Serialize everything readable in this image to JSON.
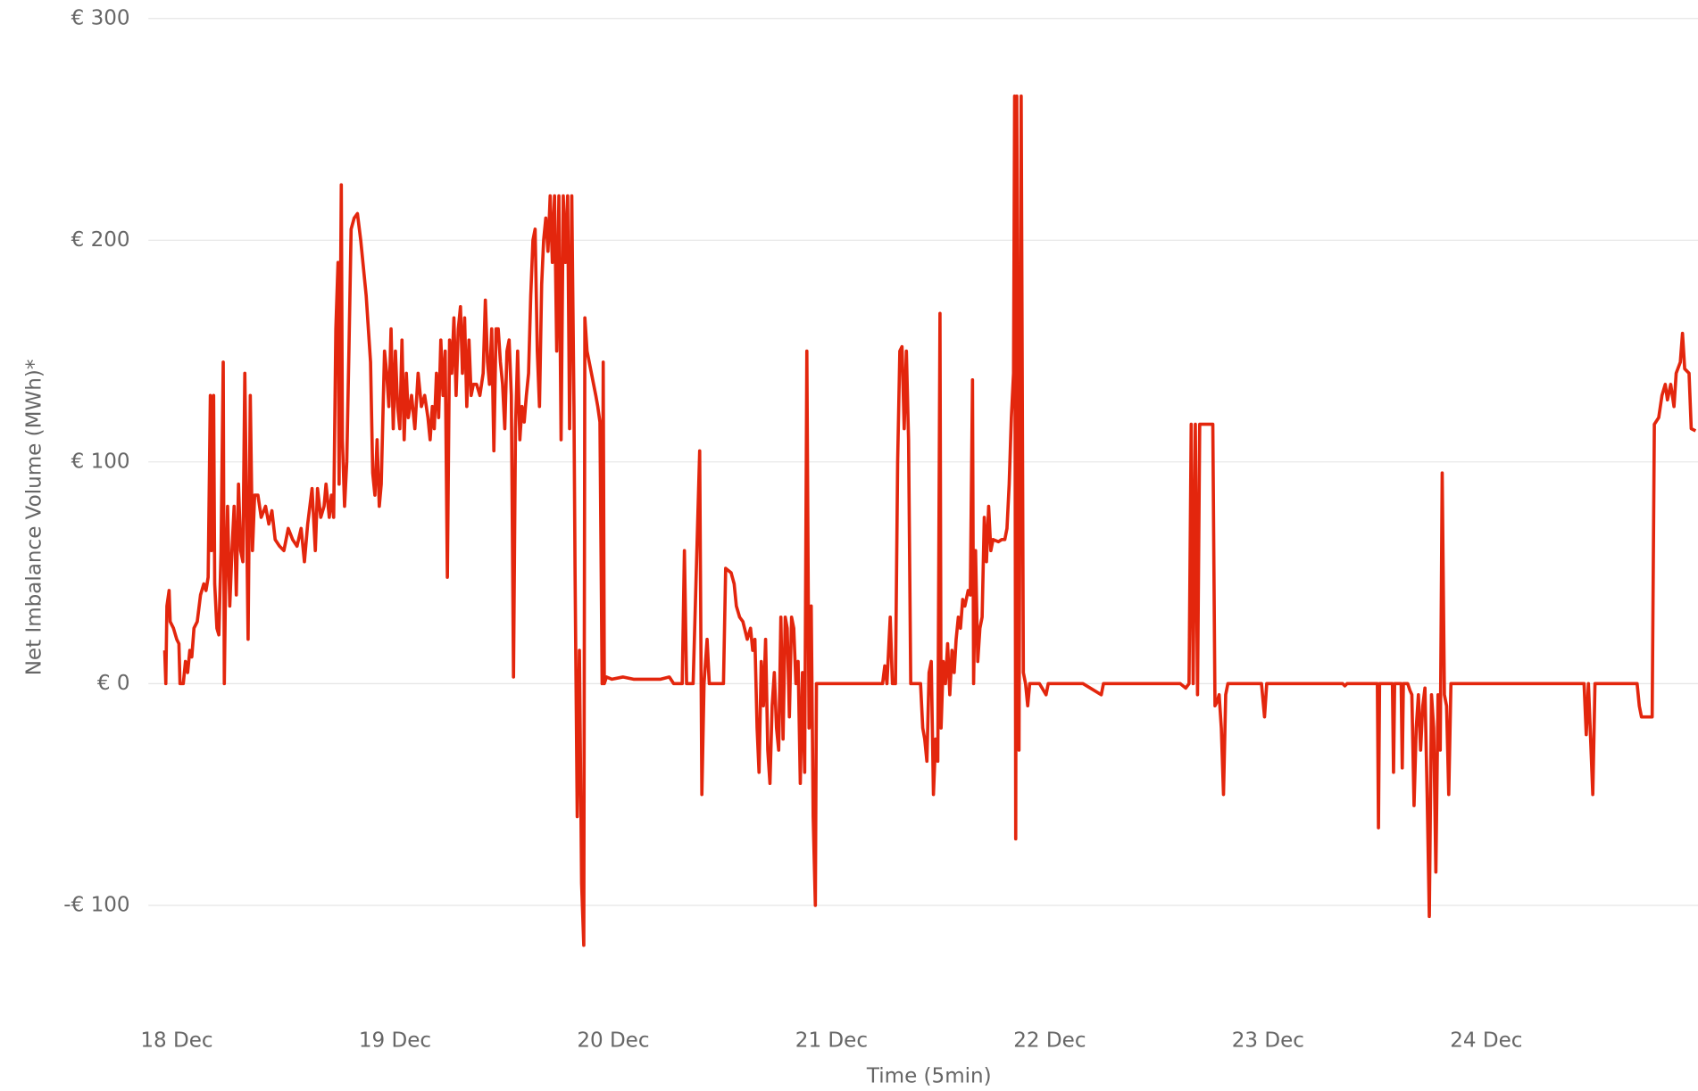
{
  "chart_data": {
    "type": "line",
    "x_label": "Time (5min)",
    "y_label": "Net Imbalance Volume (MWh)*",
    "color": "#e3260d",
    "grid": true,
    "xlim": [
      17.87,
      24.97
    ],
    "ylim": [
      -150,
      300
    ],
    "xticks": [
      {
        "value": 18,
        "label": "18 Dec"
      },
      {
        "value": 19,
        "label": "19 Dec"
      },
      {
        "value": 20,
        "label": "20 Dec"
      },
      {
        "value": 21,
        "label": "21 Dec"
      },
      {
        "value": 22,
        "label": "22 Dec"
      },
      {
        "value": 23,
        "label": "23 Dec"
      },
      {
        "value": 24,
        "label": "24 Dec"
      }
    ],
    "yticks": [
      {
        "value": 300,
        "label": "€ 300"
      },
      {
        "value": 200,
        "label": "€ 200"
      },
      {
        "value": 100,
        "label": "€ 100"
      },
      {
        "value": 0,
        "label": "€ 0"
      },
      {
        "value": -100,
        "label": "-€ 100"
      }
    ],
    "x": [
      17.945,
      17.95,
      17.955,
      17.965,
      17.97,
      17.985,
      18.0,
      18.01,
      18.015,
      18.03,
      18.04,
      18.05,
      18.06,
      18.069,
      18.079,
      18.094,
      18.109,
      18.124,
      18.134,
      18.144,
      18.154,
      18.159,
      18.169,
      18.174,
      18.184,
      18.193,
      18.203,
      18.213,
      18.218,
      18.223,
      18.233,
      18.243,
      18.253,
      18.263,
      18.273,
      18.283,
      18.293,
      18.303,
      18.312,
      18.322,
      18.327,
      18.337,
      18.347,
      18.357,
      18.372,
      18.387,
      18.407,
      18.422,
      18.436,
      18.451,
      18.471,
      18.491,
      18.511,
      18.531,
      18.551,
      18.57,
      18.585,
      18.6,
      18.62,
      18.635,
      18.645,
      18.66,
      18.675,
      18.684,
      18.699,
      18.709,
      18.719,
      18.729,
      18.739,
      18.744,
      18.754,
      18.759,
      18.769,
      18.779,
      18.789,
      18.799,
      18.813,
      18.828,
      18.843,
      18.858,
      18.868,
      18.878,
      18.888,
      18.898,
      18.908,
      18.918,
      18.928,
      18.937,
      18.952,
      18.962,
      18.972,
      18.982,
      18.992,
      19.002,
      19.012,
      19.022,
      19.032,
      19.042,
      19.052,
      19.061,
      19.076,
      19.091,
      19.106,
      19.121,
      19.136,
      19.151,
      19.161,
      19.171,
      19.18,
      19.19,
      19.2,
      19.21,
      19.22,
      19.23,
      19.24,
      19.25,
      19.26,
      19.27,
      19.28,
      19.29,
      19.3,
      19.309,
      19.319,
      19.329,
      19.339,
      19.349,
      19.359,
      19.374,
      19.389,
      19.404,
      19.414,
      19.424,
      19.433,
      19.443,
      19.453,
      19.463,
      19.473,
      19.483,
      19.493,
      19.503,
      19.513,
      19.523,
      19.533,
      19.543,
      19.552,
      19.562,
      19.572,
      19.582,
      19.592,
      19.602,
      19.612,
      19.622,
      19.632,
      19.642,
      19.652,
      19.662,
      19.672,
      19.681,
      19.691,
      19.701,
      19.711,
      19.721,
      19.731,
      19.741,
      19.751,
      19.761,
      19.771,
      19.781,
      19.791,
      19.8,
      19.81,
      19.82,
      19.825,
      19.835,
      19.845,
      19.855,
      19.865,
      19.87,
      19.88,
      19.89,
      19.9,
      19.91,
      19.92,
      19.929,
      19.939,
      19.949,
      19.954,
      19.959,
      19.969,
      19.994,
      20.044,
      20.093,
      20.167,
      20.217,
      20.257,
      20.277,
      20.316,
      20.326,
      20.336,
      20.366,
      20.396,
      20.406,
      20.416,
      20.43,
      20.44,
      20.465,
      20.505,
      20.515,
      20.54,
      20.554,
      20.564,
      20.579,
      20.594,
      20.614,
      20.629,
      20.639,
      20.649,
      20.659,
      20.668,
      20.678,
      20.688,
      20.698,
      20.708,
      20.718,
      20.728,
      20.738,
      20.748,
      20.758,
      20.768,
      20.778,
      20.788,
      20.797,
      20.807,
      20.817,
      20.827,
      20.837,
      20.847,
      20.857,
      20.867,
      20.877,
      20.887,
      20.897,
      20.907,
      20.916,
      20.926,
      20.931,
      21.011,
      21.11,
      21.234,
      21.244,
      21.254,
      21.269,
      21.279,
      21.293,
      21.303,
      21.313,
      21.323,
      21.333,
      21.343,
      21.353,
      21.363,
      21.408,
      21.418,
      21.427,
      21.437,
      21.447,
      21.457,
      21.467,
      21.477,
      21.487,
      21.497,
      21.502,
      21.512,
      21.522,
      21.532,
      21.542,
      21.552,
      21.562,
      21.571,
      21.581,
      21.591,
      21.601,
      21.611,
      21.626,
      21.636,
      21.646,
      21.651,
      21.66,
      21.67,
      21.68,
      21.69,
      21.7,
      21.71,
      21.72,
      21.73,
      21.74,
      21.765,
      21.78,
      21.794,
      21.804,
      21.814,
      21.824,
      21.834,
      21.839,
      21.844,
      21.849,
      21.859,
      21.869,
      21.879,
      21.889,
      21.899,
      21.908,
      21.953,
      21.983,
      21.993,
      22.152,
      22.236,
      22.246,
      22.449,
      22.598,
      22.623,
      22.638,
      22.648,
      22.657,
      22.667,
      22.677,
      22.687,
      22.707,
      22.727,
      22.747,
      22.757,
      22.767,
      22.776,
      22.786,
      22.796,
      22.806,
      22.816,
      22.846,
      22.97,
      22.984,
      22.994,
      23.342,
      23.352,
      23.362,
      23.501,
      23.506,
      23.511,
      23.57,
      23.575,
      23.58,
      23.61,
      23.615,
      23.62,
      23.64,
      23.65,
      23.659,
      23.669,
      23.679,
      23.689,
      23.699,
      23.709,
      23.719,
      23.729,
      23.739,
      23.749,
      23.759,
      23.769,
      23.779,
      23.789,
      23.798,
      23.808,
      23.818,
      23.828,
      23.838,
      24.136,
      24.448,
      24.458,
      24.468,
      24.478,
      24.488,
      24.498,
      24.691,
      24.701,
      24.711,
      24.76,
      24.77,
      24.79,
      24.805,
      24.82,
      24.83,
      24.845,
      24.86,
      24.87,
      24.889,
      24.899,
      24.909,
      24.929,
      24.939,
      24.959
    ],
    "values": [
      15,
      0,
      35,
      42,
      28,
      25,
      20,
      18,
      0,
      0,
      10,
      5,
      15,
      12,
      25,
      28,
      40,
      45,
      42,
      48,
      130,
      60,
      130,
      45,
      25,
      22,
      60,
      145,
      0,
      40,
      80,
      35,
      60,
      80,
      40,
      90,
      60,
      55,
      140,
      60,
      20,
      130,
      60,
      85,
      85,
      75,
      80,
      72,
      78,
      65,
      62,
      60,
      70,
      65,
      62,
      70,
      55,
      72,
      88,
      60,
      88,
      75,
      80,
      90,
      75,
      85,
      75,
      160,
      190,
      90,
      225,
      110,
      80,
      100,
      150,
      205,
      210,
      212,
      200,
      185,
      175,
      160,
      145,
      95,
      85,
      110,
      80,
      90,
      150,
      140,
      125,
      160,
      115,
      150,
      125,
      115,
      155,
      110,
      140,
      120,
      130,
      115,
      140,
      125,
      130,
      120,
      110,
      125,
      115,
      140,
      120,
      155,
      130,
      150,
      48,
      155,
      140,
      165,
      130,
      160,
      170,
      140,
      165,
      125,
      155,
      130,
      135,
      135,
      130,
      140,
      173,
      145,
      135,
      160,
      105,
      160,
      160,
      145,
      135,
      115,
      150,
      155,
      130,
      3,
      115,
      150,
      110,
      125,
      118,
      130,
      140,
      175,
      200,
      205,
      150,
      125,
      180,
      200,
      210,
      195,
      220,
      190,
      220,
      150,
      220,
      110,
      220,
      190,
      220,
      115,
      220,
      125,
      50,
      -60,
      15,
      -90,
      -118,
      165,
      150,
      145,
      140,
      135,
      130,
      125,
      118,
      0,
      145,
      0,
      3,
      2,
      3,
      2,
      2,
      2,
      3,
      0,
      0,
      60,
      0,
      0,
      105,
      -50,
      0,
      20,
      0,
      0,
      0,
      52,
      50,
      45,
      35,
      30,
      28,
      20,
      25,
      15,
      20,
      -20,
      -40,
      10,
      -10,
      20,
      -30,
      -45,
      -10,
      5,
      -20,
      -30,
      30,
      -25,
      30,
      25,
      -15,
      30,
      25,
      0,
      10,
      -45,
      5,
      -40,
      150,
      -20,
      35,
      -60,
      -100,
      0,
      0,
      0,
      0,
      8,
      0,
      30,
      0,
      0,
      100,
      150,
      152,
      115,
      150,
      110,
      0,
      0,
      -20,
      -25,
      -35,
      5,
      10,
      -50,
      -25,
      -35,
      167,
      -20,
      10,
      0,
      18,
      -5,
      15,
      5,
      20,
      30,
      25,
      38,
      35,
      42,
      40,
      137,
      0,
      60,
      10,
      25,
      30,
      75,
      55,
      80,
      60,
      65,
      64,
      65,
      65,
      70,
      90,
      120,
      140,
      265,
      -70,
      265,
      -30,
      265,
      5,
      0,
      -10,
      0,
      0,
      -5,
      0,
      0,
      -5,
      0,
      0,
      0,
      -2,
      0,
      117,
      0,
      117,
      -5,
      117,
      117,
      117,
      117,
      -10,
      -8,
      -5,
      -20,
      -50,
      -5,
      0,
      0,
      0,
      -15,
      0,
      0,
      -1,
      0,
      0,
      -65,
      0,
      0,
      -40,
      0,
      0,
      -38,
      0,
      0,
      -3,
      -5,
      -55,
      -20,
      -5,
      -30,
      -10,
      -2,
      -50,
      -105,
      -5,
      -20,
      -85,
      -5,
      -30,
      95,
      -5,
      -10,
      -50,
      0,
      0,
      0,
      -23,
      0,
      -25,
      -50,
      0,
      0,
      -10,
      -15,
      -15,
      117,
      120,
      130,
      135,
      128,
      135,
      125,
      140,
      145,
      158,
      142,
      140,
      115,
      114
    ]
  }
}
